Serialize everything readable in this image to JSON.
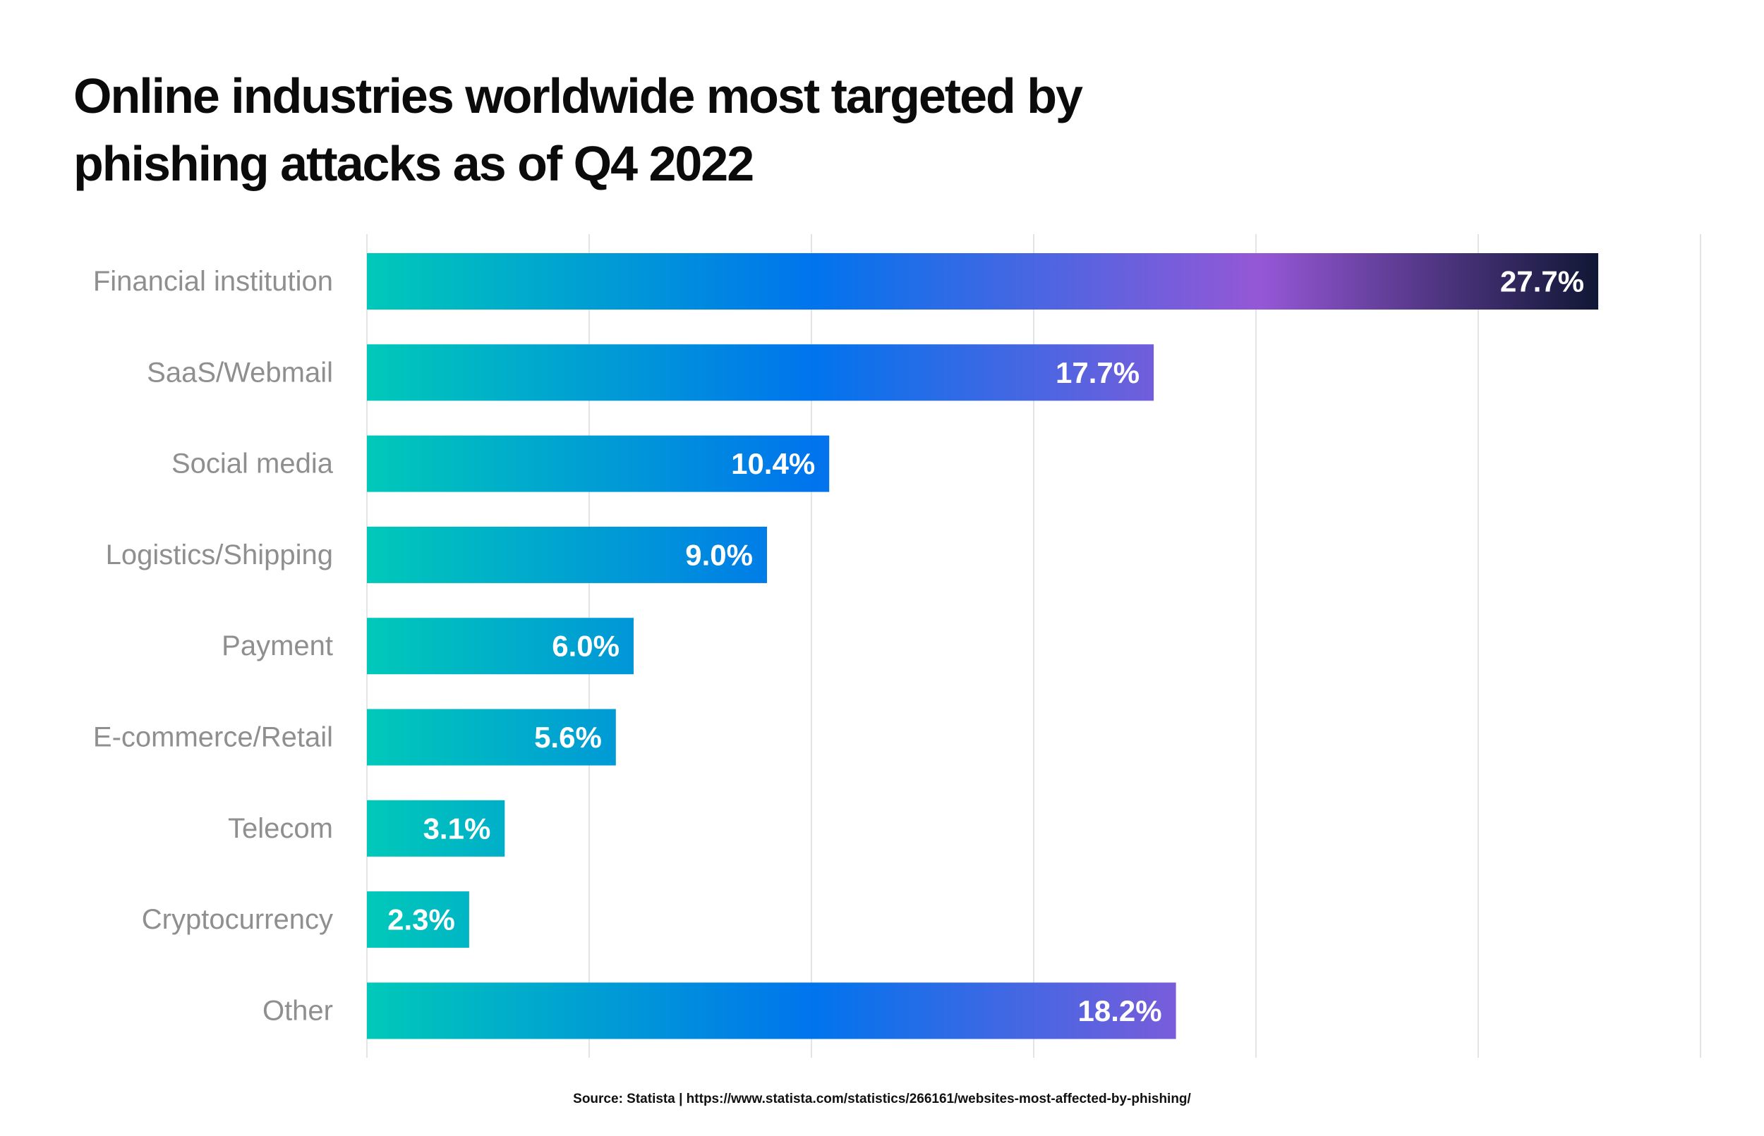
{
  "chart_data": {
    "type": "bar",
    "orientation": "horizontal",
    "title": "Online industries worldwide most targeted by phishing attacks as of Q4 2022",
    "categories": [
      "Financial institution",
      "SaaS/Webmail",
      "Social media",
      "Logistics/Shipping",
      "Payment",
      "E-commerce/Retail",
      "Telecom",
      "Cryptocurrency",
      "Other"
    ],
    "values": [
      27.7,
      17.7,
      10.4,
      9.0,
      6.0,
      5.6,
      3.1,
      2.3,
      18.2
    ],
    "value_labels": [
      "27.7%",
      "17.7%",
      "10.4%",
      "9.0%",
      "6.0%",
      "5.6%",
      "3.1%",
      "2.3%",
      "18.2%"
    ],
    "unit": "%",
    "xlim": [
      0,
      30
    ],
    "grid_step": 5,
    "grid": true,
    "xlabel": "",
    "ylabel": "",
    "colors": {
      "gradient": [
        "#00c9b9",
        "#0074ed",
        "#9557d6",
        "#0c1530"
      ],
      "grid": "#e4e4e4",
      "category_text": "#8f8f8f",
      "value_text": "#ffffff",
      "title_text": "#0b0b0b"
    }
  },
  "source": "Source: Statista | https://www.statista.com/statistics/266161/websites-most-affected-by-phishing/"
}
